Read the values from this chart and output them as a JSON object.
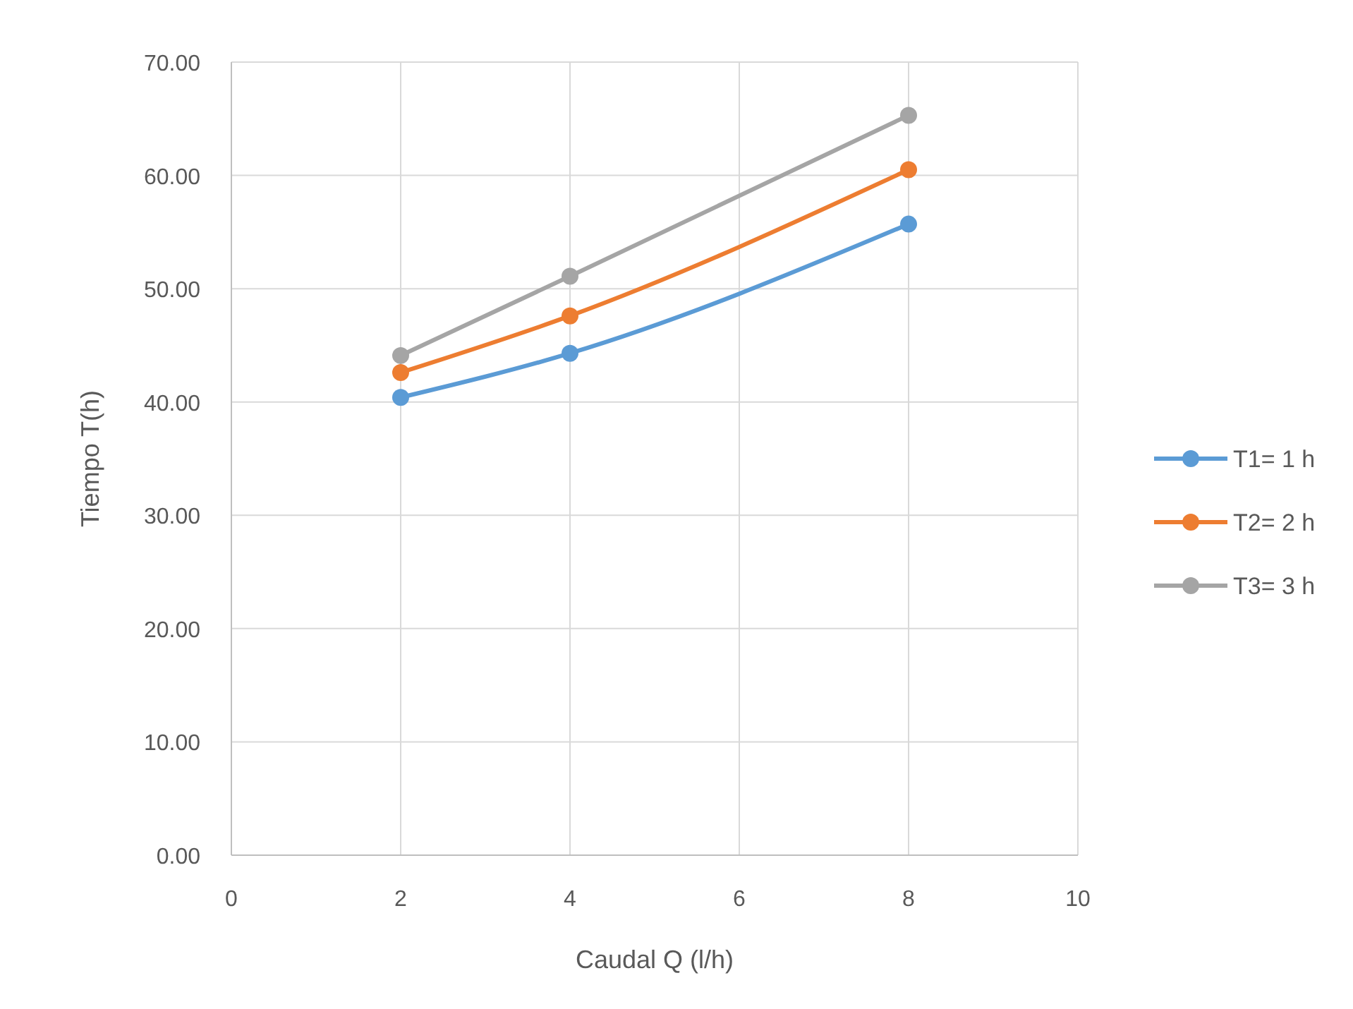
{
  "chart_data": {
    "type": "line",
    "xlabel": "Caudal Q (l/h)",
    "ylabel": "Tiempo T(h)",
    "x": [
      2,
      4,
      8
    ],
    "series": [
      {
        "name": "T1= 1 h",
        "color": "#5b9bd5",
        "values": [
          40.4,
          44.3,
          55.7
        ]
      },
      {
        "name": "T2= 2 h",
        "color": "#ed7d31",
        "values": [
          42.6,
          47.6,
          60.5
        ]
      },
      {
        "name": "T3= 3 h",
        "color": "#a5a5a5",
        "values": [
          44.1,
          51.1,
          65.3
        ]
      }
    ],
    "xlim": [
      0,
      10
    ],
    "xticks": [
      0,
      2,
      4,
      6,
      8,
      10
    ],
    "ylim": [
      0,
      70
    ],
    "yticks": [
      {
        "value": 0,
        "label": "0.00"
      },
      {
        "value": 10,
        "label": "10.00"
      },
      {
        "value": 20,
        "label": "20.00"
      },
      {
        "value": 30,
        "label": "30.00"
      },
      {
        "value": 40,
        "label": "40.00"
      },
      {
        "value": 50,
        "label": "50.00"
      },
      {
        "value": 60,
        "label": "60.00"
      },
      {
        "value": 70,
        "label": "70.00"
      }
    ],
    "grid": true,
    "legend": "right",
    "marker": "circle",
    "line_style": "solid"
  }
}
